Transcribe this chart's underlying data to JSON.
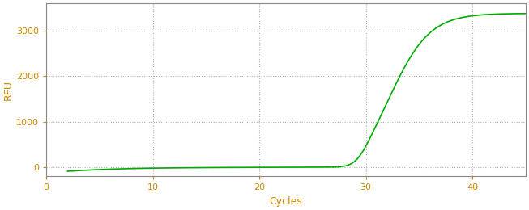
{
  "xlabel": "Cycles",
  "ylabel": "RFU",
  "line_color": "#00aa00",
  "background_color": "#ffffff",
  "grid_color": "#b0b0b0",
  "axis_label_color": "#cc8800",
  "tick_color": "#cc8800",
  "spine_color": "#888888",
  "xlim": [
    0,
    45
  ],
  "ylim": [
    -200,
    3600
  ],
  "xticks": [
    0,
    10,
    20,
    30,
    40
  ],
  "yticks": [
    0,
    1000,
    2000,
    3000
  ],
  "sigmoid_L": 3380,
  "sigmoid_k": 0.55,
  "sigmoid_x0": 32.5,
  "x_start": 2,
  "x_end": 45,
  "noise_baseline": -90,
  "xlabel_fontsize": 9,
  "ylabel_fontsize": 9,
  "tick_fontsize": 8,
  "figsize": [
    6.53,
    2.6
  ],
  "dpi": 100
}
